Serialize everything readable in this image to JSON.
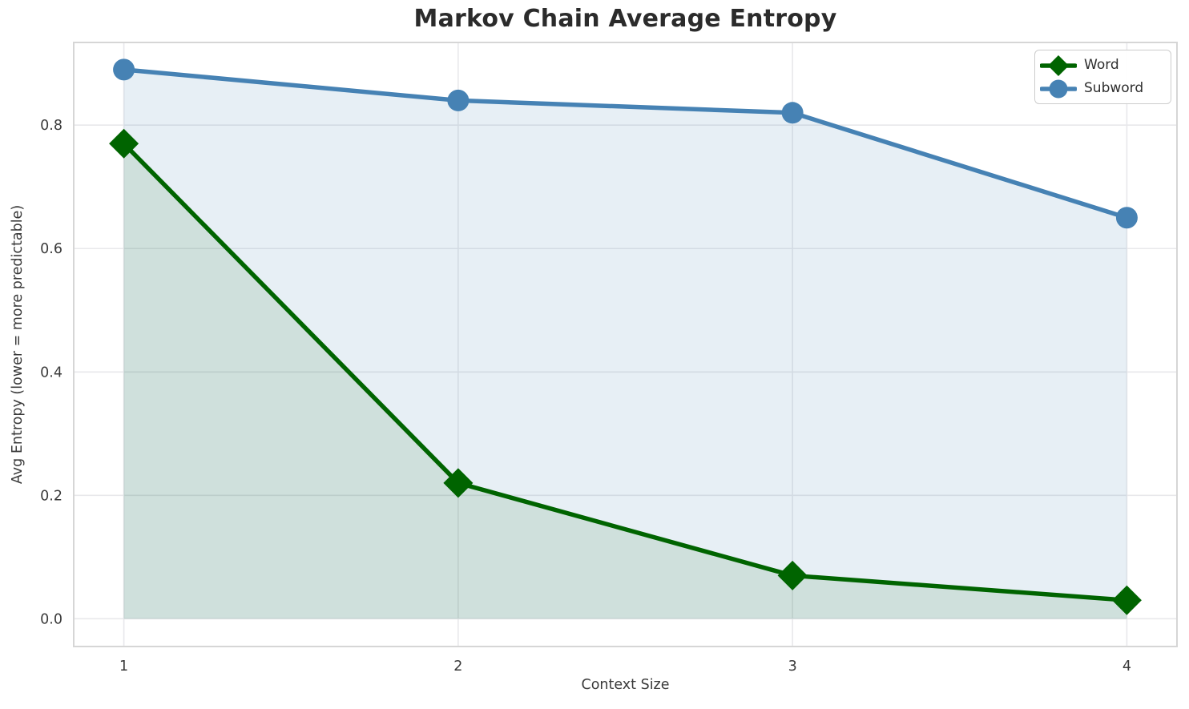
{
  "title": "Markov Chain Average Entropy",
  "chart_data": {
    "type": "line",
    "title": "Markov Chain Average Entropy",
    "xlabel": "Context Size",
    "ylabel": "Avg Entropy (lower = more predictable)",
    "x": [
      1,
      2,
      3,
      4
    ],
    "x_tick_labels": [
      "1",
      "2",
      "3",
      "4"
    ],
    "y_tick_values": [
      0.0,
      0.2,
      0.4,
      0.6,
      0.8
    ],
    "y_tick_labels": [
      "0.0",
      "0.2",
      "0.4",
      "0.6",
      "0.8"
    ],
    "xlim": [
      0.85,
      4.15
    ],
    "ylim": [
      -0.045,
      0.934
    ],
    "grid": true,
    "area_fill_baseline": 0,
    "legend_position": "upper right",
    "series": [
      {
        "name": "Word",
        "marker": "diamond",
        "color": "#006400",
        "fill_alpha": 0.1,
        "values": [
          0.77,
          0.22,
          0.07,
          0.03
        ]
      },
      {
        "name": "Subword",
        "marker": "circle",
        "color": "#4682b4",
        "fill_alpha": 0.13,
        "values": [
          0.89,
          0.84,
          0.82,
          0.65
        ]
      }
    ]
  },
  "style": {
    "grid_color": "#e8e8eb",
    "spine_color": "#d6d6d6",
    "tick_color": "#3a3a3a",
    "title_color": "#2b2b2b"
  }
}
